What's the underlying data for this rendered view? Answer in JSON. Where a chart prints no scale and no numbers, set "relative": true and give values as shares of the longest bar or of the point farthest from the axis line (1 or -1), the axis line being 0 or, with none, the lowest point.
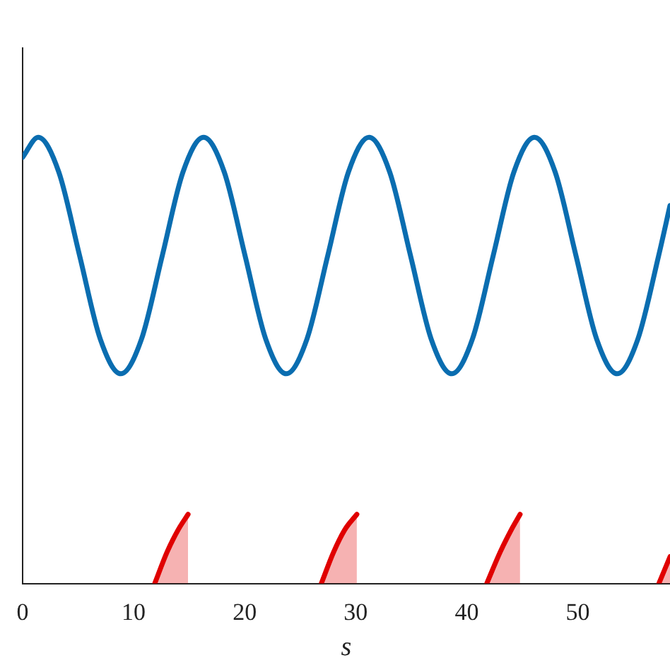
{
  "chart_data": {
    "type": "line",
    "relative": true,
    "xlabel": "s",
    "xlim": [
      0,
      58.3
    ],
    "xticks": [
      0,
      10,
      20,
      30,
      40,
      50
    ],
    "grid": false,
    "legend": false,
    "marker": "none",
    "line_style": "solid",
    "series": [
      {
        "color": "#0a6db0",
        "x": [
          0,
          1.4,
          3.26,
          5.13,
          6.99,
          8.85,
          10.71,
          12.58,
          14.44,
          16.3,
          18.16,
          20.03,
          21.89,
          23.75,
          25.61,
          27.48,
          29.34,
          31.2,
          33.06,
          34.93,
          36.79,
          38.65,
          40.51,
          42.38,
          44.24,
          46.1,
          47.96,
          49.83,
          51.69,
          53.55,
          55.41,
          57.28,
          58.3
        ],
        "values": [
          0.955,
          1,
          0.922,
          0.735,
          0.548,
          0.47,
          0.548,
          0.735,
          0.922,
          1,
          0.922,
          0.735,
          0.548,
          0.47,
          0.548,
          0.735,
          0.922,
          1,
          0.922,
          0.735,
          0.548,
          0.47,
          0.548,
          0.735,
          0.922,
          1,
          0.922,
          0.735,
          0.548,
          0.47,
          0.548,
          0.735,
          0.847
        ]
      },
      {
        "type": "area",
        "color": "#e00000",
        "x": [
          11.9,
          13,
          14,
          14.9
        ],
        "values": [
          0,
          0.07,
          0.12,
          0.155
        ]
      },
      {
        "type": "area",
        "color": "#e00000",
        "x": [
          26.9,
          28,
          29,
          30.1
        ],
        "values": [
          0,
          0.07,
          0.12,
          0.155
        ]
      },
      {
        "type": "area",
        "color": "#e00000",
        "x": [
          41.8,
          43,
          44,
          44.8
        ],
        "values": [
          0,
          0.07,
          0.12,
          0.155
        ]
      },
      {
        "type": "area",
        "color": "#e00000",
        "x": [
          57.3,
          58.3
        ],
        "values": [
          0,
          0.06
        ]
      }
    ]
  }
}
